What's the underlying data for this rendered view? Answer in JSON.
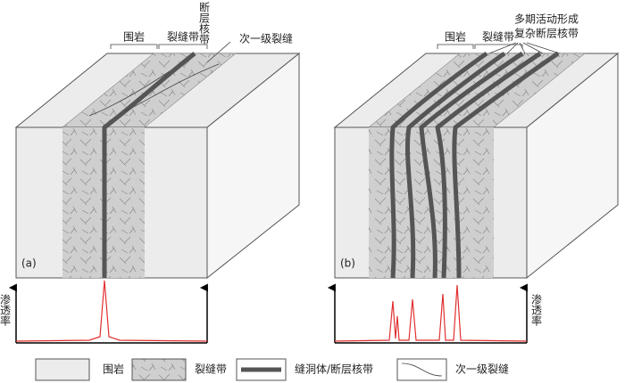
{
  "panel_a": {
    "label": "(a)",
    "wall_rock": "围岩",
    "fracture_zone": "裂缝带",
    "fault_core": "断层核带",
    "secondary_fracture": "次一级裂缝",
    "permeability": "渗透率"
  },
  "panel_b": {
    "label": "(b)",
    "wall_rock": "围岩",
    "fracture_zone": "裂缝带",
    "fault_core_lines": [
      "多期活动形成",
      "复杂断层核带"
    ],
    "permeability": "渗透率"
  },
  "legend": {
    "items": [
      "围岩",
      "裂缝带",
      "缝洞体/断层核带",
      "次一级裂缝"
    ]
  }
}
